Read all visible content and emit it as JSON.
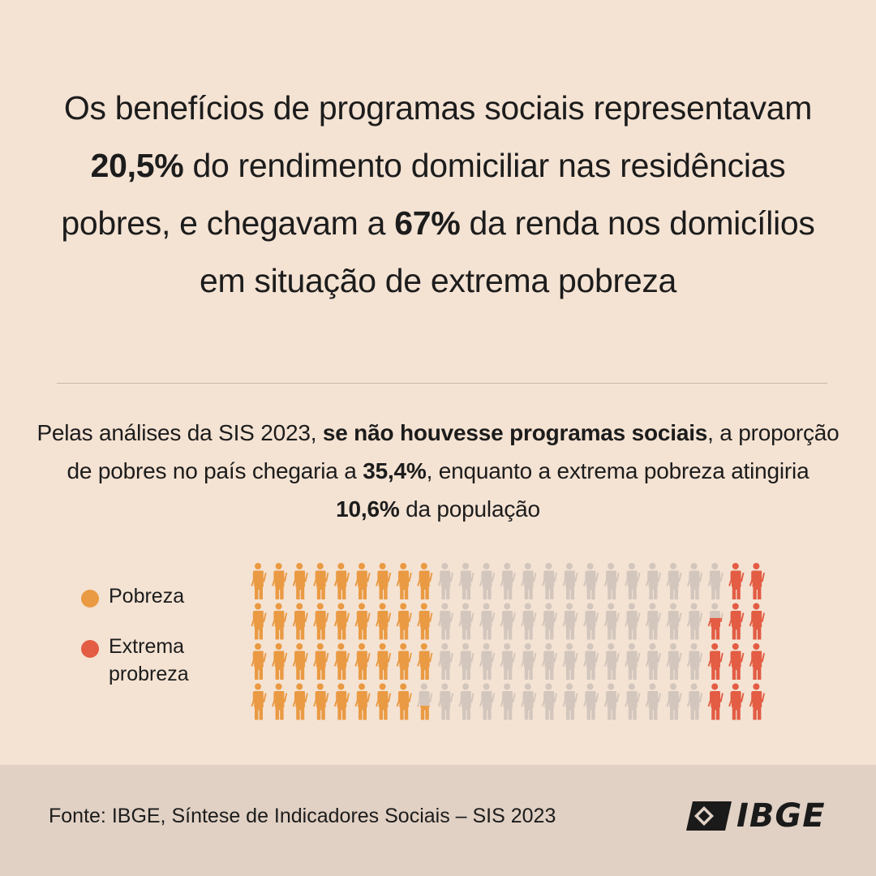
{
  "headline": {
    "part1": "Os benefícios de programas sociais representavam ",
    "value1": "20,5%",
    "part2": " do rendimento domiciliar nas residências pobres, e chegavam a ",
    "value2": "67%",
    "part3": " da renda nos domicílios em situação de extrema pobreza"
  },
  "subtext": {
    "part1": "Pelas análises da SIS 2023, ",
    "bold1": "se não houvesse programas sociais",
    "part2": ", a proporção de pobres no país chegaria a ",
    "bold2": "35,4%",
    "part3": ", enquanto a extrema pobreza atingiria ",
    "bold3": "10,6%",
    "part4": " da população"
  },
  "legend": [
    {
      "label": "Pobreza",
      "color": "#ea9a43"
    },
    {
      "label": "Extrema\nprobreza",
      "color": "#e35d45"
    }
  ],
  "chart_data": {
    "type": "pictogram",
    "total_icons": 100,
    "rows": 4,
    "columns": 25,
    "series": [
      {
        "name": "Pobreza",
        "value": 35.4,
        "color": "#ea9a43"
      },
      {
        "name": "Extrema probreza",
        "value": 10.6,
        "color": "#e35d45"
      }
    ],
    "empty_color": "#d2c6bd"
  },
  "footer": {
    "source": "Fonte: IBGE, Síntese de Indicadores Sociais – SIS 2023",
    "logo_text": "IBGE",
    "background": "#e1d1c4"
  }
}
